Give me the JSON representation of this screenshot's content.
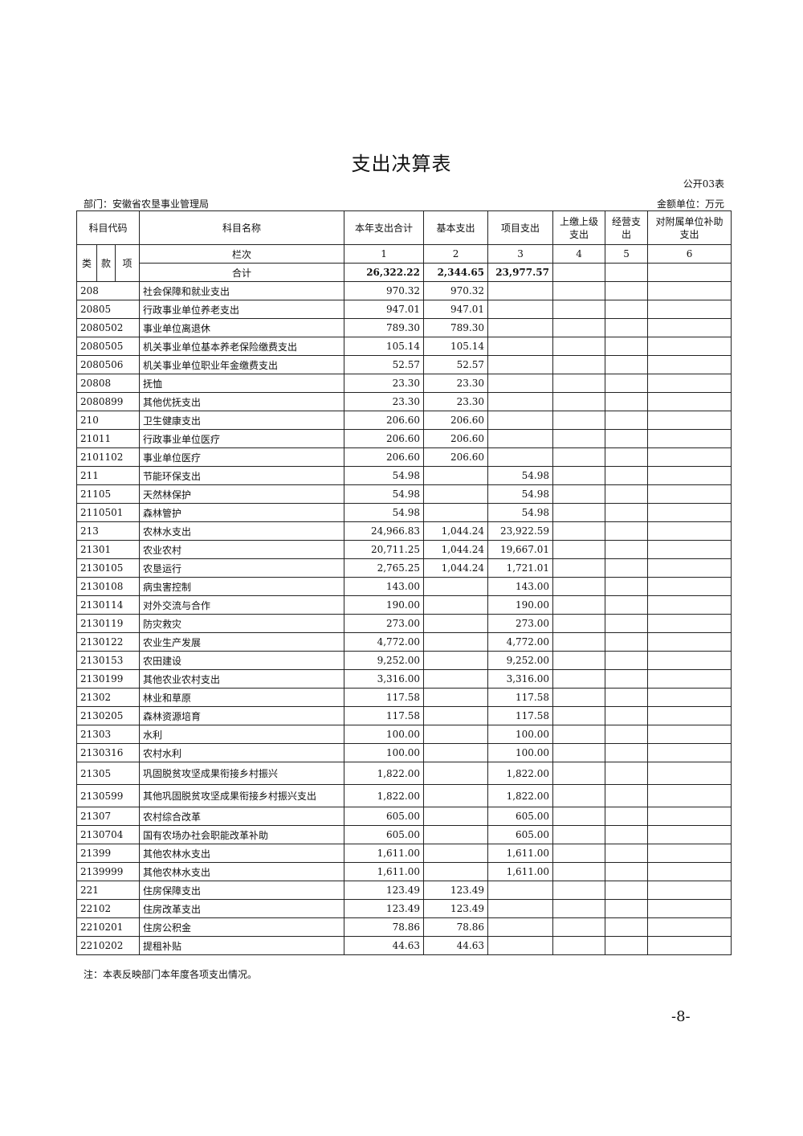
{
  "title": "支出决算表",
  "form_no": "公开03表",
  "department": "部门：安徽省农垦事业管理局",
  "unit": "金额单位：万元",
  "headers": {
    "code": "科目代码",
    "name": "科目名称",
    "col1": "本年支出合计",
    "col2": "基本支出",
    "col3": "项目支出",
    "col4": "上缴上级支出",
    "col5": "经营支出",
    "col6": "对附属单位补助支出",
    "lei": "类",
    "kuan": "款",
    "xiang": "项",
    "lanci": "栏次",
    "n1": "1",
    "n2": "2",
    "n3": "3",
    "n4": "4",
    "n5": "5",
    "n6": "6",
    "total_label": "合计",
    "total": [
      "26,322.22",
      "2,344.65",
      "23,977.57"
    ]
  },
  "rows": [
    [
      "208",
      "社会保障和就业支出",
      "970.32",
      "970.32",
      ""
    ],
    [
      "20805",
      "行政事业单位养老支出",
      "947.01",
      "947.01",
      ""
    ],
    [
      "2080502",
      "事业单位离退休",
      "789.30",
      "789.30",
      ""
    ],
    [
      "2080505",
      "机关事业单位基本养老保险缴费支出",
      "105.14",
      "105.14",
      ""
    ],
    [
      "2080506",
      "机关事业单位职业年金缴费支出",
      "52.57",
      "52.57",
      ""
    ],
    [
      "20808",
      "抚恤",
      "23.30",
      "23.30",
      ""
    ],
    [
      "2080899",
      "其他优抚支出",
      "23.30",
      "23.30",
      ""
    ],
    [
      "210",
      "卫生健康支出",
      "206.60",
      "206.60",
      ""
    ],
    [
      "21011",
      "行政事业单位医疗",
      "206.60",
      "206.60",
      ""
    ],
    [
      "2101102",
      "事业单位医疗",
      "206.60",
      "206.60",
      ""
    ],
    [
      "211",
      "节能环保支出",
      "54.98",
      "",
      "54.98"
    ],
    [
      "21105",
      "天然林保护",
      "54.98",
      "",
      "54.98"
    ],
    [
      "2110501",
      "森林管护",
      "54.98",
      "",
      "54.98"
    ],
    [
      "213",
      "农林水支出",
      "24,966.83",
      "1,044.24",
      "23,922.59"
    ],
    [
      "21301",
      "农业农村",
      "20,711.25",
      "1,044.24",
      "19,667.01"
    ],
    [
      "2130105",
      "农垦运行",
      "2,765.25",
      "1,044.24",
      "1,721.01"
    ],
    [
      "2130108",
      "病虫害控制",
      "143.00",
      "",
      "143.00"
    ],
    [
      "2130114",
      "对外交流与合作",
      "190.00",
      "",
      "190.00"
    ],
    [
      "2130119",
      "防灾救灾",
      "273.00",
      "",
      "273.00"
    ],
    [
      "2130122",
      "农业生产发展",
      "4,772.00",
      "",
      "4,772.00"
    ],
    [
      "2130153",
      "农田建设",
      "9,252.00",
      "",
      "9,252.00"
    ],
    [
      "2130199",
      "其他农业农村支出",
      "3,316.00",
      "",
      "3,316.00"
    ],
    [
      "21302",
      "林业和草原",
      "117.58",
      "",
      "117.58"
    ],
    [
      "2130205",
      "森林资源培育",
      "117.58",
      "",
      "117.58"
    ],
    [
      "21303",
      "水利",
      "100.00",
      "",
      "100.00"
    ],
    [
      "2130316",
      "农村水利",
      "100.00",
      "",
      "100.00"
    ],
    [
      "21305",
      "巩固脱贫攻坚成果衔接乡村振兴",
      "1,822.00",
      "",
      "1,822.00"
    ],
    [
      "2130599",
      "其他巩固脱贫攻坚成果衔接乡村振兴支出",
      "1,822.00",
      "",
      "1,822.00"
    ],
    [
      "21307",
      "农村综合改革",
      "605.00",
      "",
      "605.00"
    ],
    [
      "2130704",
      "国有农场办社会职能改革补助",
      "605.00",
      "",
      "605.00"
    ],
    [
      "21399",
      "其他农林水支出",
      "1,611.00",
      "",
      "1,611.00"
    ],
    [
      "2139999",
      "其他农林水支出",
      "1,611.00",
      "",
      "1,611.00"
    ],
    [
      "221",
      "住房保障支出",
      "123.49",
      "123.49",
      ""
    ],
    [
      "22102",
      "住房改革支出",
      "123.49",
      "123.49",
      ""
    ],
    [
      "2210201",
      "住房公积金",
      "78.86",
      "78.86",
      ""
    ],
    [
      "2210202",
      "提租补贴",
      "44.63",
      "44.63",
      ""
    ]
  ],
  "note": "注：本表反映部门本年度各项支出情况。",
  "page_number": "-8-"
}
